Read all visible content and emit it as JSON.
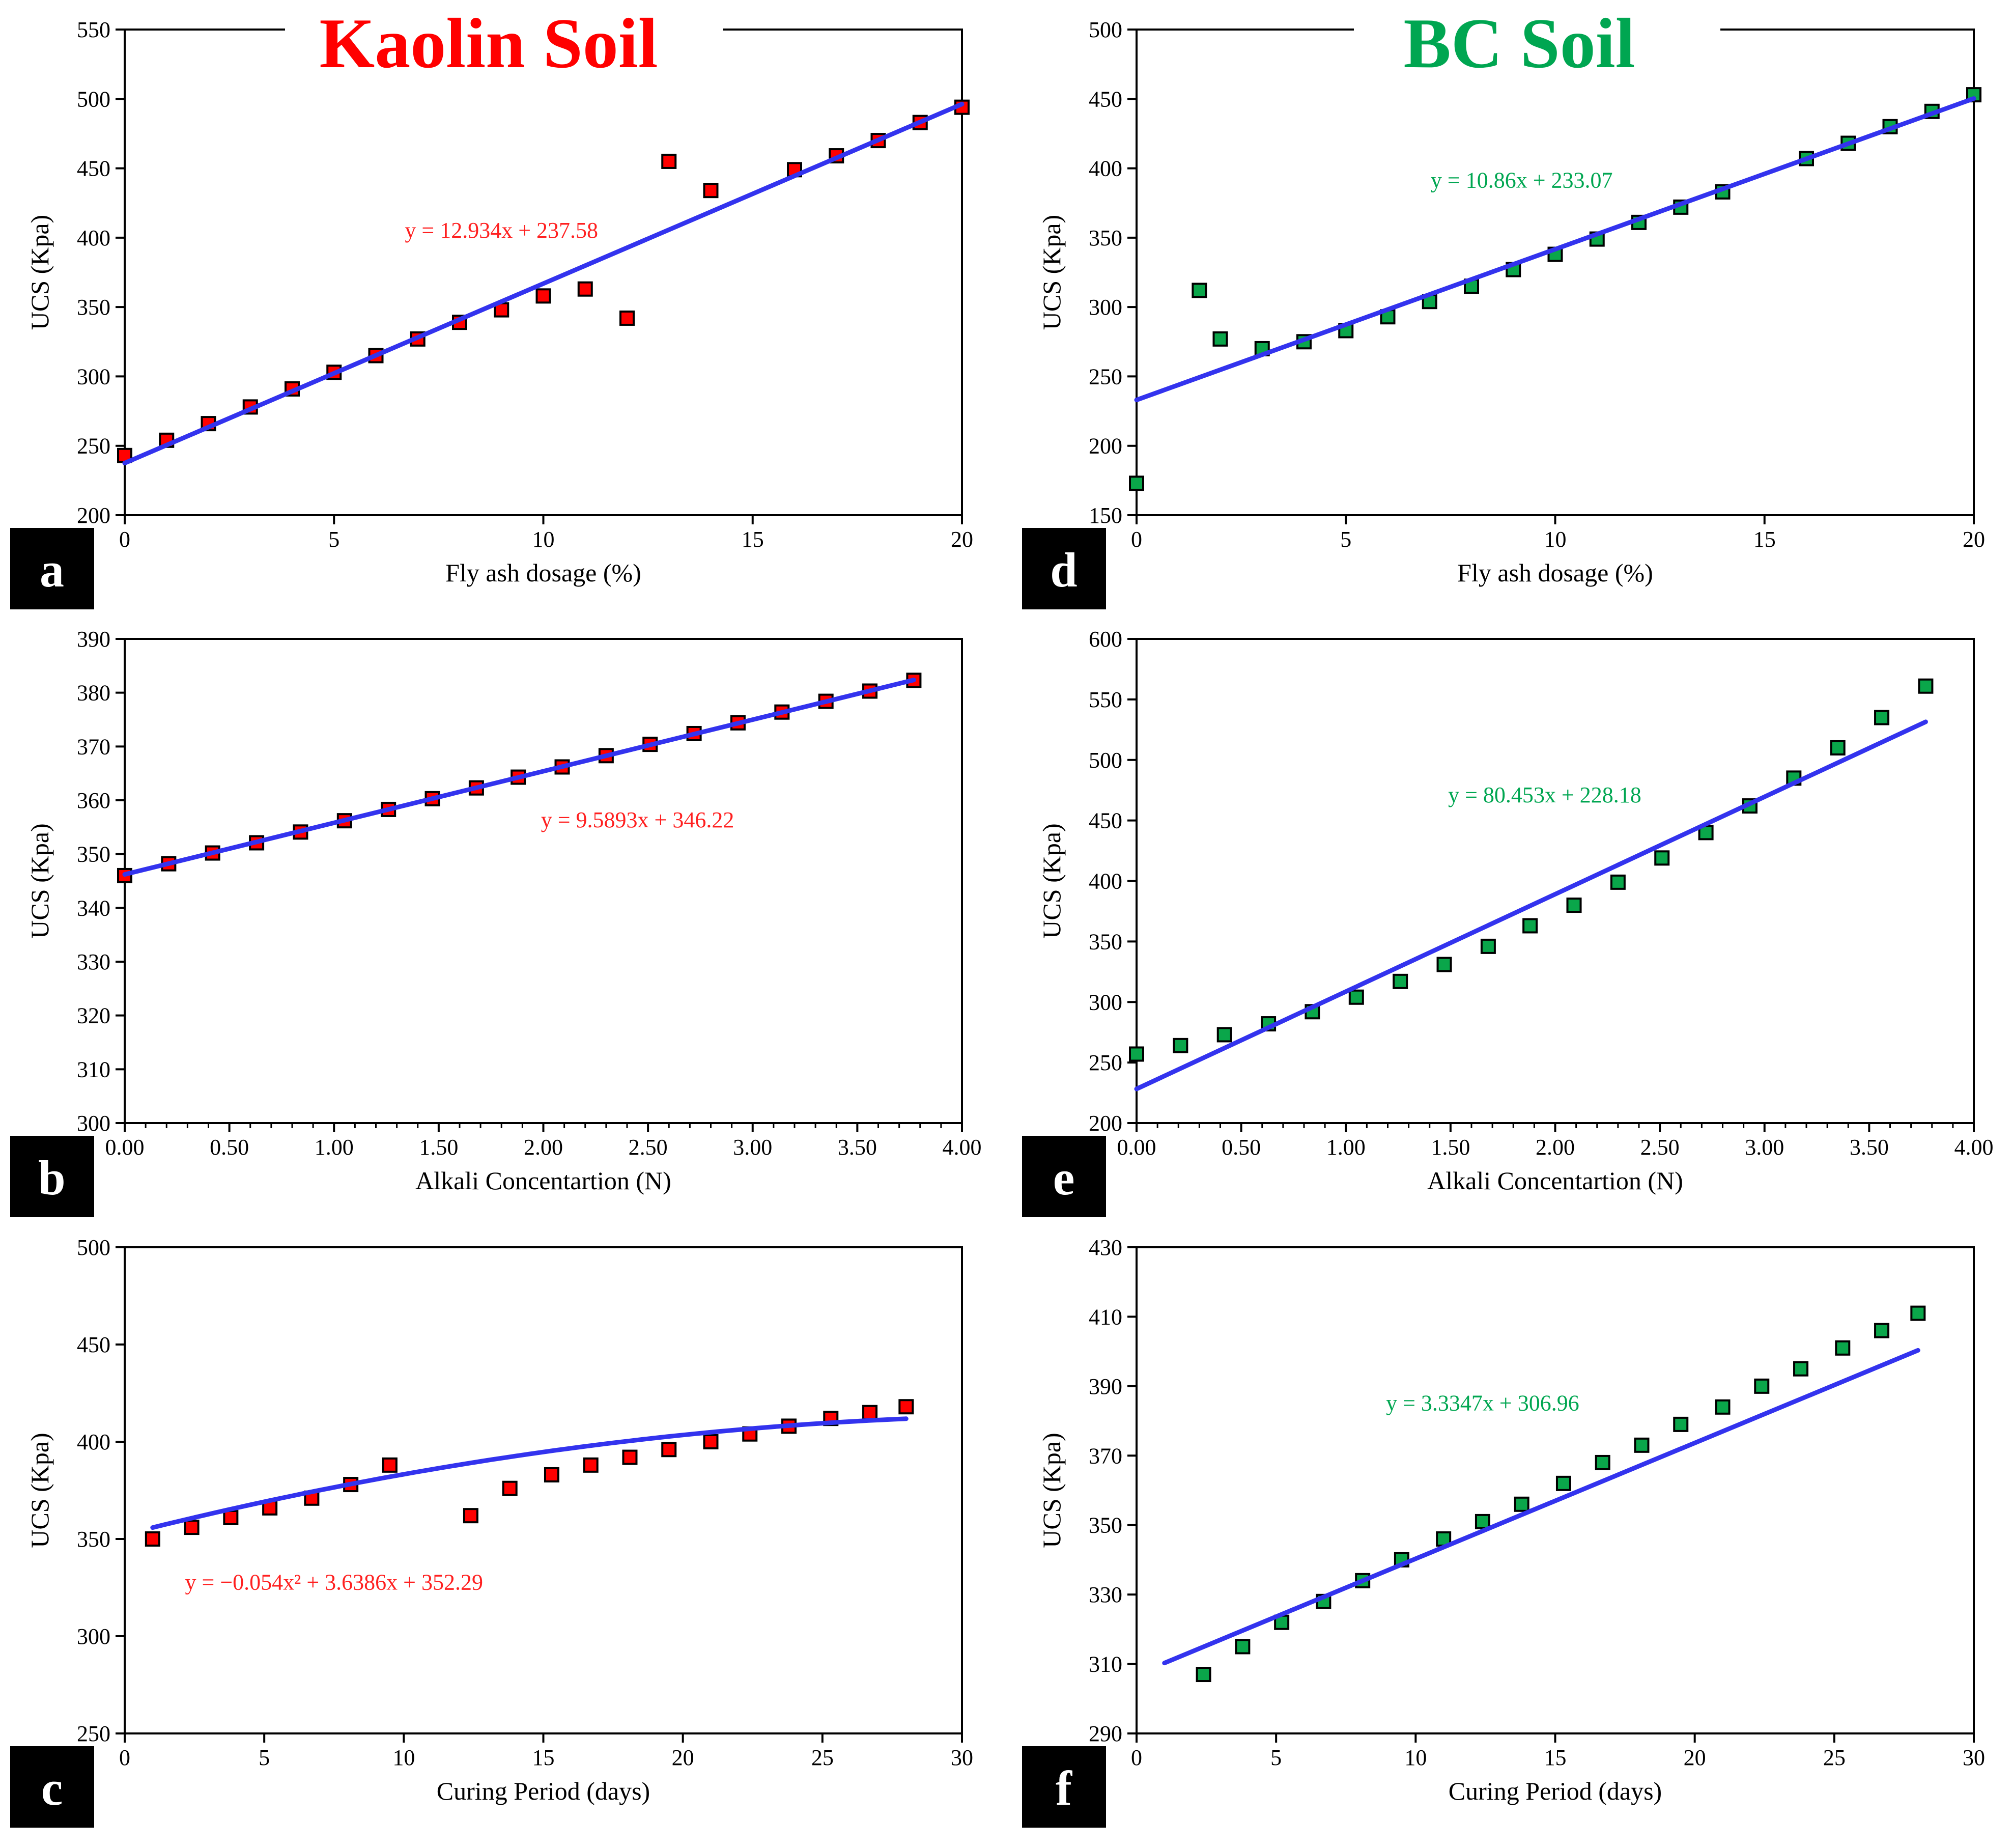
{
  "titles": {
    "kaolin": "Kaolin Soil",
    "bc": "BC Soil"
  },
  "colors": {
    "kaolin_title": "#ff0000",
    "bc_title": "#00a651",
    "kaolin_marker": "#ff0000",
    "bc_marker": "#0aa64a",
    "fit_line": "#3333ee",
    "kaolin_eq": "#ff2020",
    "bc_eq": "#00a651"
  },
  "chart_data": [
    {
      "id": "a",
      "panel_label": "a",
      "type": "scatter",
      "soil": "kaolin",
      "title": "",
      "xlabel": "Fly ash dosage (%)",
      "ylabel": "UCS (Kpa)",
      "xlim": [
        0,
        20
      ],
      "ylim": [
        200,
        550
      ],
      "xticks": [
        0,
        5,
        10,
        15,
        20
      ],
      "xtick_labels": [
        "0",
        "5",
        "10",
        "15",
        "20"
      ],
      "yticks": [
        200,
        250,
        300,
        350,
        400,
        450,
        500,
        550
      ],
      "ytick_labels": [
        "200",
        "250",
        "300",
        "350",
        "400",
        "450",
        "500",
        "550"
      ],
      "x_minor": [],
      "points": [
        [
          0,
          243
        ],
        [
          1,
          254
        ],
        [
          2,
          266
        ],
        [
          3,
          278
        ],
        [
          4,
          291
        ],
        [
          5,
          303
        ],
        [
          6,
          315
        ],
        [
          7,
          327
        ],
        [
          8,
          339
        ],
        [
          9,
          348
        ],
        [
          10,
          358
        ],
        [
          11,
          363
        ],
        [
          12,
          342
        ],
        [
          13,
          455
        ],
        [
          14,
          434
        ],
        [
          16,
          449
        ],
        [
          17,
          459
        ],
        [
          18,
          470
        ],
        [
          19,
          483
        ],
        [
          20,
          494
        ]
      ],
      "fit": {
        "type": "linear",
        "a": 12.934,
        "b": 237.58,
        "x_range": [
          0,
          20
        ]
      },
      "equation": "y = 12.934x + 237.58",
      "equation_pos": [
        9,
        400
      ]
    },
    {
      "id": "b",
      "panel_label": "b",
      "type": "scatter",
      "soil": "kaolin",
      "title": "",
      "xlabel": "Alkali Concentartion (N)",
      "ylabel": "UCS (Kpa)",
      "xlim": [
        0,
        4
      ],
      "ylim": [
        300,
        390
      ],
      "xticks": [
        0,
        0.5,
        1,
        1.5,
        2,
        2.5,
        3,
        3.5,
        4
      ],
      "xtick_labels": [
        "0.00",
        "0.50",
        "1.00",
        "1.50",
        "2.00",
        "2.50",
        "3.00",
        "3.50",
        "4.00"
      ],
      "yticks": [
        300,
        310,
        320,
        330,
        340,
        350,
        360,
        370,
        380,
        390
      ],
      "ytick_labels": [
        "300",
        "310",
        "320",
        "330",
        "340",
        "350",
        "360",
        "370",
        "380",
        "390"
      ],
      "x_minor": [
        0.1,
        0.2,
        0.3,
        0.4,
        0.6,
        0.7,
        0.8,
        0.9,
        1.1,
        1.2,
        1.3,
        1.4,
        1.6,
        1.7,
        1.8,
        1.9,
        2.1,
        2.2,
        2.3,
        2.4,
        2.6,
        2.7,
        2.8,
        2.9,
        3.1,
        3.2,
        3.3,
        3.4,
        3.6,
        3.7,
        3.8,
        3.9
      ],
      "points": [
        [
          0,
          346
        ],
        [
          0.21,
          348.2
        ],
        [
          0.42,
          350.2
        ],
        [
          0.63,
          352.1
        ],
        [
          0.84,
          354.1
        ],
        [
          1.05,
          356.2
        ],
        [
          1.26,
          358.3
        ],
        [
          1.47,
          360.3
        ],
        [
          1.68,
          362.3
        ],
        [
          1.88,
          364.3
        ],
        [
          2.09,
          366.2
        ],
        [
          2.3,
          368.3
        ],
        [
          2.51,
          370.4
        ],
        [
          2.72,
          372.4
        ],
        [
          2.93,
          374.4
        ],
        [
          3.14,
          376.4
        ],
        [
          3.35,
          378.4
        ],
        [
          3.56,
          380.3
        ],
        [
          3.77,
          382.3
        ]
      ],
      "fit": {
        "type": "linear",
        "a": 9.5893,
        "b": 346.22,
        "x_range": [
          0,
          3.77
        ]
      },
      "equation": "y = 9.5893x + 346.22",
      "equation_pos": [
        2.45,
        355
      ]
    },
    {
      "id": "c",
      "panel_label": "c",
      "type": "scatter",
      "soil": "kaolin",
      "title": "",
      "xlabel": "Curing Period (days)",
      "ylabel": "UCS (Kpa)",
      "xlim": [
        0,
        30
      ],
      "ylim": [
        250,
        500
      ],
      "xticks": [
        0,
        5,
        10,
        15,
        20,
        25,
        30
      ],
      "xtick_labels": [
        "0",
        "5",
        "10",
        "15",
        "20",
        "25",
        "30"
      ],
      "yticks": [
        250,
        300,
        350,
        400,
        450,
        500
      ],
      "ytick_labels": [
        "250",
        "300",
        "350",
        "400",
        "450",
        "500"
      ],
      "x_minor": [],
      "points": [
        [
          1,
          350
        ],
        [
          2.4,
          356
        ],
        [
          3.8,
          361
        ],
        [
          5.2,
          366
        ],
        [
          6.7,
          371
        ],
        [
          8.1,
          378
        ],
        [
          9.5,
          388
        ],
        [
          12.4,
          362
        ],
        [
          13.8,
          376
        ],
        [
          15.3,
          383
        ],
        [
          16.7,
          388
        ],
        [
          18.1,
          392
        ],
        [
          19.5,
          396
        ],
        [
          21,
          400
        ],
        [
          22.4,
          404
        ],
        [
          23.8,
          408
        ],
        [
          25.3,
          412
        ],
        [
          26.7,
          415
        ],
        [
          28,
          418
        ]
      ],
      "fit": {
        "type": "quadratic",
        "a": -0.054,
        "b": 3.6386,
        "c": 352.29,
        "x_range": [
          1,
          28
        ]
      },
      "equation": "y = −0.054x² + 3.6386x + 352.29",
      "equation_pos": [
        7.5,
        324
      ]
    },
    {
      "id": "d",
      "panel_label": "d",
      "type": "scatter",
      "soil": "bc",
      "title": "",
      "xlabel": "Fly ash dosage (%)",
      "ylabel": "UCS (Kpa)",
      "xlim": [
        0,
        20
      ],
      "ylim": [
        150,
        500
      ],
      "xticks": [
        0,
        5,
        10,
        15,
        20
      ],
      "xtick_labels": [
        "0",
        "5",
        "10",
        "15",
        "20"
      ],
      "yticks": [
        150,
        200,
        250,
        300,
        350,
        400,
        450,
        500
      ],
      "ytick_labels": [
        "150",
        "200",
        "250",
        "300",
        "350",
        "400",
        "450",
        "500"
      ],
      "x_minor": [],
      "points": [
        [
          0,
          173
        ],
        [
          1.5,
          312
        ],
        [
          2,
          277
        ],
        [
          3,
          270
        ],
        [
          4,
          275
        ],
        [
          5,
          283
        ],
        [
          6,
          293
        ],
        [
          7,
          304
        ],
        [
          8,
          315
        ],
        [
          9,
          327
        ],
        [
          10,
          338
        ],
        [
          11,
          349
        ],
        [
          12,
          361
        ],
        [
          13,
          372
        ],
        [
          14,
          383
        ],
        [
          16,
          407
        ],
        [
          17,
          418
        ],
        [
          18,
          430
        ],
        [
          19,
          441
        ],
        [
          20,
          453
        ]
      ],
      "fit": {
        "type": "linear",
        "a": 10.86,
        "b": 233.07,
        "x_range": [
          0,
          20
        ]
      },
      "equation": "y = 10.86x + 233.07",
      "equation_pos": [
        9.2,
        386
      ]
    },
    {
      "id": "e",
      "panel_label": "e",
      "type": "scatter",
      "soil": "bc",
      "title": "",
      "xlabel": "Alkali Concentartion (N)",
      "ylabel": "UCS (Kpa)",
      "xlim": [
        0,
        4
      ],
      "ylim": [
        200,
        600
      ],
      "xticks": [
        0,
        0.5,
        1,
        1.5,
        2,
        2.5,
        3,
        3.5,
        4
      ],
      "xtick_labels": [
        "0.00",
        "0.50",
        "1.00",
        "1.50",
        "2.00",
        "2.50",
        "3.00",
        "3.50",
        "4.00"
      ],
      "yticks": [
        200,
        250,
        300,
        350,
        400,
        450,
        500,
        550,
        600
      ],
      "ytick_labels": [
        "200",
        "250",
        "300",
        "350",
        "400",
        "450",
        "500",
        "550",
        "600"
      ],
      "x_minor": [
        0.1,
        0.2,
        0.3,
        0.4,
        0.6,
        0.7,
        0.8,
        0.9,
        1.1,
        1.2,
        1.3,
        1.4,
        1.6,
        1.7,
        1.8,
        1.9,
        2.1,
        2.2,
        2.3,
        2.4,
        2.6,
        2.7,
        2.8,
        2.9,
        3.1,
        3.2,
        3.3,
        3.4,
        3.6,
        3.7,
        3.8,
        3.9
      ],
      "points": [
        [
          0,
          257
        ],
        [
          0.21,
          264
        ],
        [
          0.42,
          273
        ],
        [
          0.63,
          282
        ],
        [
          0.84,
          292
        ],
        [
          1.05,
          304
        ],
        [
          1.26,
          317
        ],
        [
          1.47,
          331
        ],
        [
          1.68,
          346
        ],
        [
          1.88,
          363
        ],
        [
          2.09,
          380
        ],
        [
          2.3,
          399
        ],
        [
          2.51,
          419
        ],
        [
          2.72,
          440
        ],
        [
          2.93,
          462
        ],
        [
          3.14,
          485
        ],
        [
          3.35,
          510
        ],
        [
          3.56,
          535
        ],
        [
          3.77,
          561
        ]
      ],
      "fit": {
        "type": "linear",
        "a": 80.453,
        "b": 228.18,
        "x_range": [
          0,
          3.77
        ]
      },
      "equation": "y = 80.453x + 228.18",
      "equation_pos": [
        1.95,
        465
      ]
    },
    {
      "id": "f",
      "panel_label": "f",
      "type": "scatter",
      "soil": "bc",
      "title": "",
      "xlabel": "Curing Period (days)",
      "ylabel": "UCS (Kpa)",
      "xlim": [
        0,
        30
      ],
      "ylim": [
        290,
        430
      ],
      "xticks": [
        0,
        5,
        10,
        15,
        20,
        25,
        30
      ],
      "xtick_labels": [
        "0",
        "5",
        "10",
        "15",
        "20",
        "25",
        "30"
      ],
      "yticks": [
        290,
        310,
        330,
        350,
        370,
        390,
        410,
        430
      ],
      "ytick_labels": [
        "290",
        "310",
        "330",
        "350",
        "370",
        "390",
        "410",
        "430"
      ],
      "x_minor": [],
      "points": [
        [
          2.4,
          307
        ],
        [
          3.8,
          315
        ],
        [
          5.2,
          322
        ],
        [
          6.7,
          328
        ],
        [
          8.1,
          334
        ],
        [
          9.5,
          340
        ],
        [
          11,
          346
        ],
        [
          12.4,
          351
        ],
        [
          13.8,
          356
        ],
        [
          15.3,
          362
        ],
        [
          16.7,
          368
        ],
        [
          18.1,
          373
        ],
        [
          19.5,
          379
        ],
        [
          21,
          384
        ],
        [
          22.4,
          390
        ],
        [
          23.8,
          395
        ],
        [
          25.3,
          401
        ],
        [
          26.7,
          406
        ],
        [
          28,
          411
        ]
      ],
      "fit": {
        "type": "linear",
        "a": 3.3347,
        "b": 306.96,
        "x_range": [
          1,
          28
        ]
      },
      "equation": "y = 3.3347x + 306.96",
      "equation_pos": [
        12.4,
        383
      ]
    }
  ]
}
